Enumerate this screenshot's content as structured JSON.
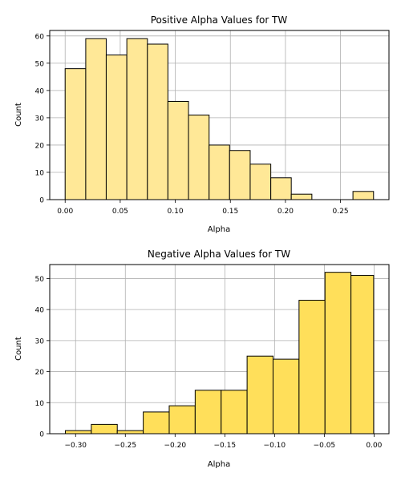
{
  "chart_data": [
    {
      "type": "bar",
      "title": "Positive Alpha Values for TW",
      "xlabel": "Alpha",
      "ylabel": "Count",
      "bar_color": "#ffe897",
      "edge_color": "#000000",
      "xlim": [
        -0.014,
        0.294
      ],
      "ylim": [
        0,
        62
      ],
      "xticks": [
        0.0,
        0.05,
        0.1,
        0.15,
        0.2,
        0.25
      ],
      "xtick_labels": [
        "0.00",
        "0.05",
        "0.10",
        "0.15",
        "0.20",
        "0.25"
      ],
      "yticks": [
        0,
        10,
        20,
        30,
        40,
        50,
        60
      ],
      "ytick_labels": [
        "0",
        "10",
        "20",
        "30",
        "40",
        "50",
        "60"
      ],
      "grid": true,
      "bins": [
        {
          "x0": 0.0,
          "x1": 0.0187,
          "count": 48
        },
        {
          "x0": 0.0187,
          "x1": 0.0373,
          "count": 59
        },
        {
          "x0": 0.0373,
          "x1": 0.056,
          "count": 53
        },
        {
          "x0": 0.056,
          "x1": 0.0747,
          "count": 59
        },
        {
          "x0": 0.0747,
          "x1": 0.0933,
          "count": 57
        },
        {
          "x0": 0.0933,
          "x1": 0.112,
          "count": 36
        },
        {
          "x0": 0.112,
          "x1": 0.1307,
          "count": 31
        },
        {
          "x0": 0.1307,
          "x1": 0.1493,
          "count": 20
        },
        {
          "x0": 0.1493,
          "x1": 0.168,
          "count": 18
        },
        {
          "x0": 0.168,
          "x1": 0.1867,
          "count": 13
        },
        {
          "x0": 0.1867,
          "x1": 0.2053,
          "count": 8
        },
        {
          "x0": 0.2053,
          "x1": 0.224,
          "count": 2
        },
        {
          "x0": 0.224,
          "x1": 0.2427,
          "count": 0
        },
        {
          "x0": 0.2427,
          "x1": 0.2613,
          "count": 0
        },
        {
          "x0": 0.2613,
          "x1": 0.28,
          "count": 3
        }
      ]
    },
    {
      "type": "bar",
      "title": "Negative Alpha Values for TW",
      "xlabel": "Alpha",
      "ylabel": "Count",
      "bar_color": "#ffdf5a",
      "edge_color": "#000000",
      "xlim": [
        -0.326,
        0.015
      ],
      "ylim": [
        0,
        54.5
      ],
      "xticks": [
        -0.3,
        -0.25,
        -0.2,
        -0.15,
        -0.1,
        -0.05,
        0.0
      ],
      "xtick_labels": [
        "−0.30",
        "−0.25",
        "−0.20",
        "−0.15",
        "−0.10",
        "−0.05",
        "0.00"
      ],
      "yticks": [
        0,
        10,
        20,
        30,
        40,
        50
      ],
      "ytick_labels": [
        "0",
        "10",
        "20",
        "30",
        "40",
        "50"
      ],
      "grid": true,
      "bins": [
        {
          "x0": -0.3103,
          "x1": -0.2842,
          "count": 1
        },
        {
          "x0": -0.2842,
          "x1": -0.2581,
          "count": 3
        },
        {
          "x0": -0.2581,
          "x1": -0.232,
          "count": 1
        },
        {
          "x0": -0.232,
          "x1": -0.2059,
          "count": 7
        },
        {
          "x0": -0.2059,
          "x1": -0.1798,
          "count": 9
        },
        {
          "x0": -0.1798,
          "x1": -0.1537,
          "count": 14
        },
        {
          "x0": -0.1537,
          "x1": -0.1276,
          "count": 14
        },
        {
          "x0": -0.1276,
          "x1": -0.1015,
          "count": 25
        },
        {
          "x0": -0.1015,
          "x1": -0.0754,
          "count": 24
        },
        {
          "x0": -0.0754,
          "x1": -0.0493,
          "count": 43
        },
        {
          "x0": -0.0493,
          "x1": -0.0232,
          "count": 52
        },
        {
          "x0": -0.0232,
          "x1": -0.0004,
          "count": 51
        }
      ]
    }
  ]
}
